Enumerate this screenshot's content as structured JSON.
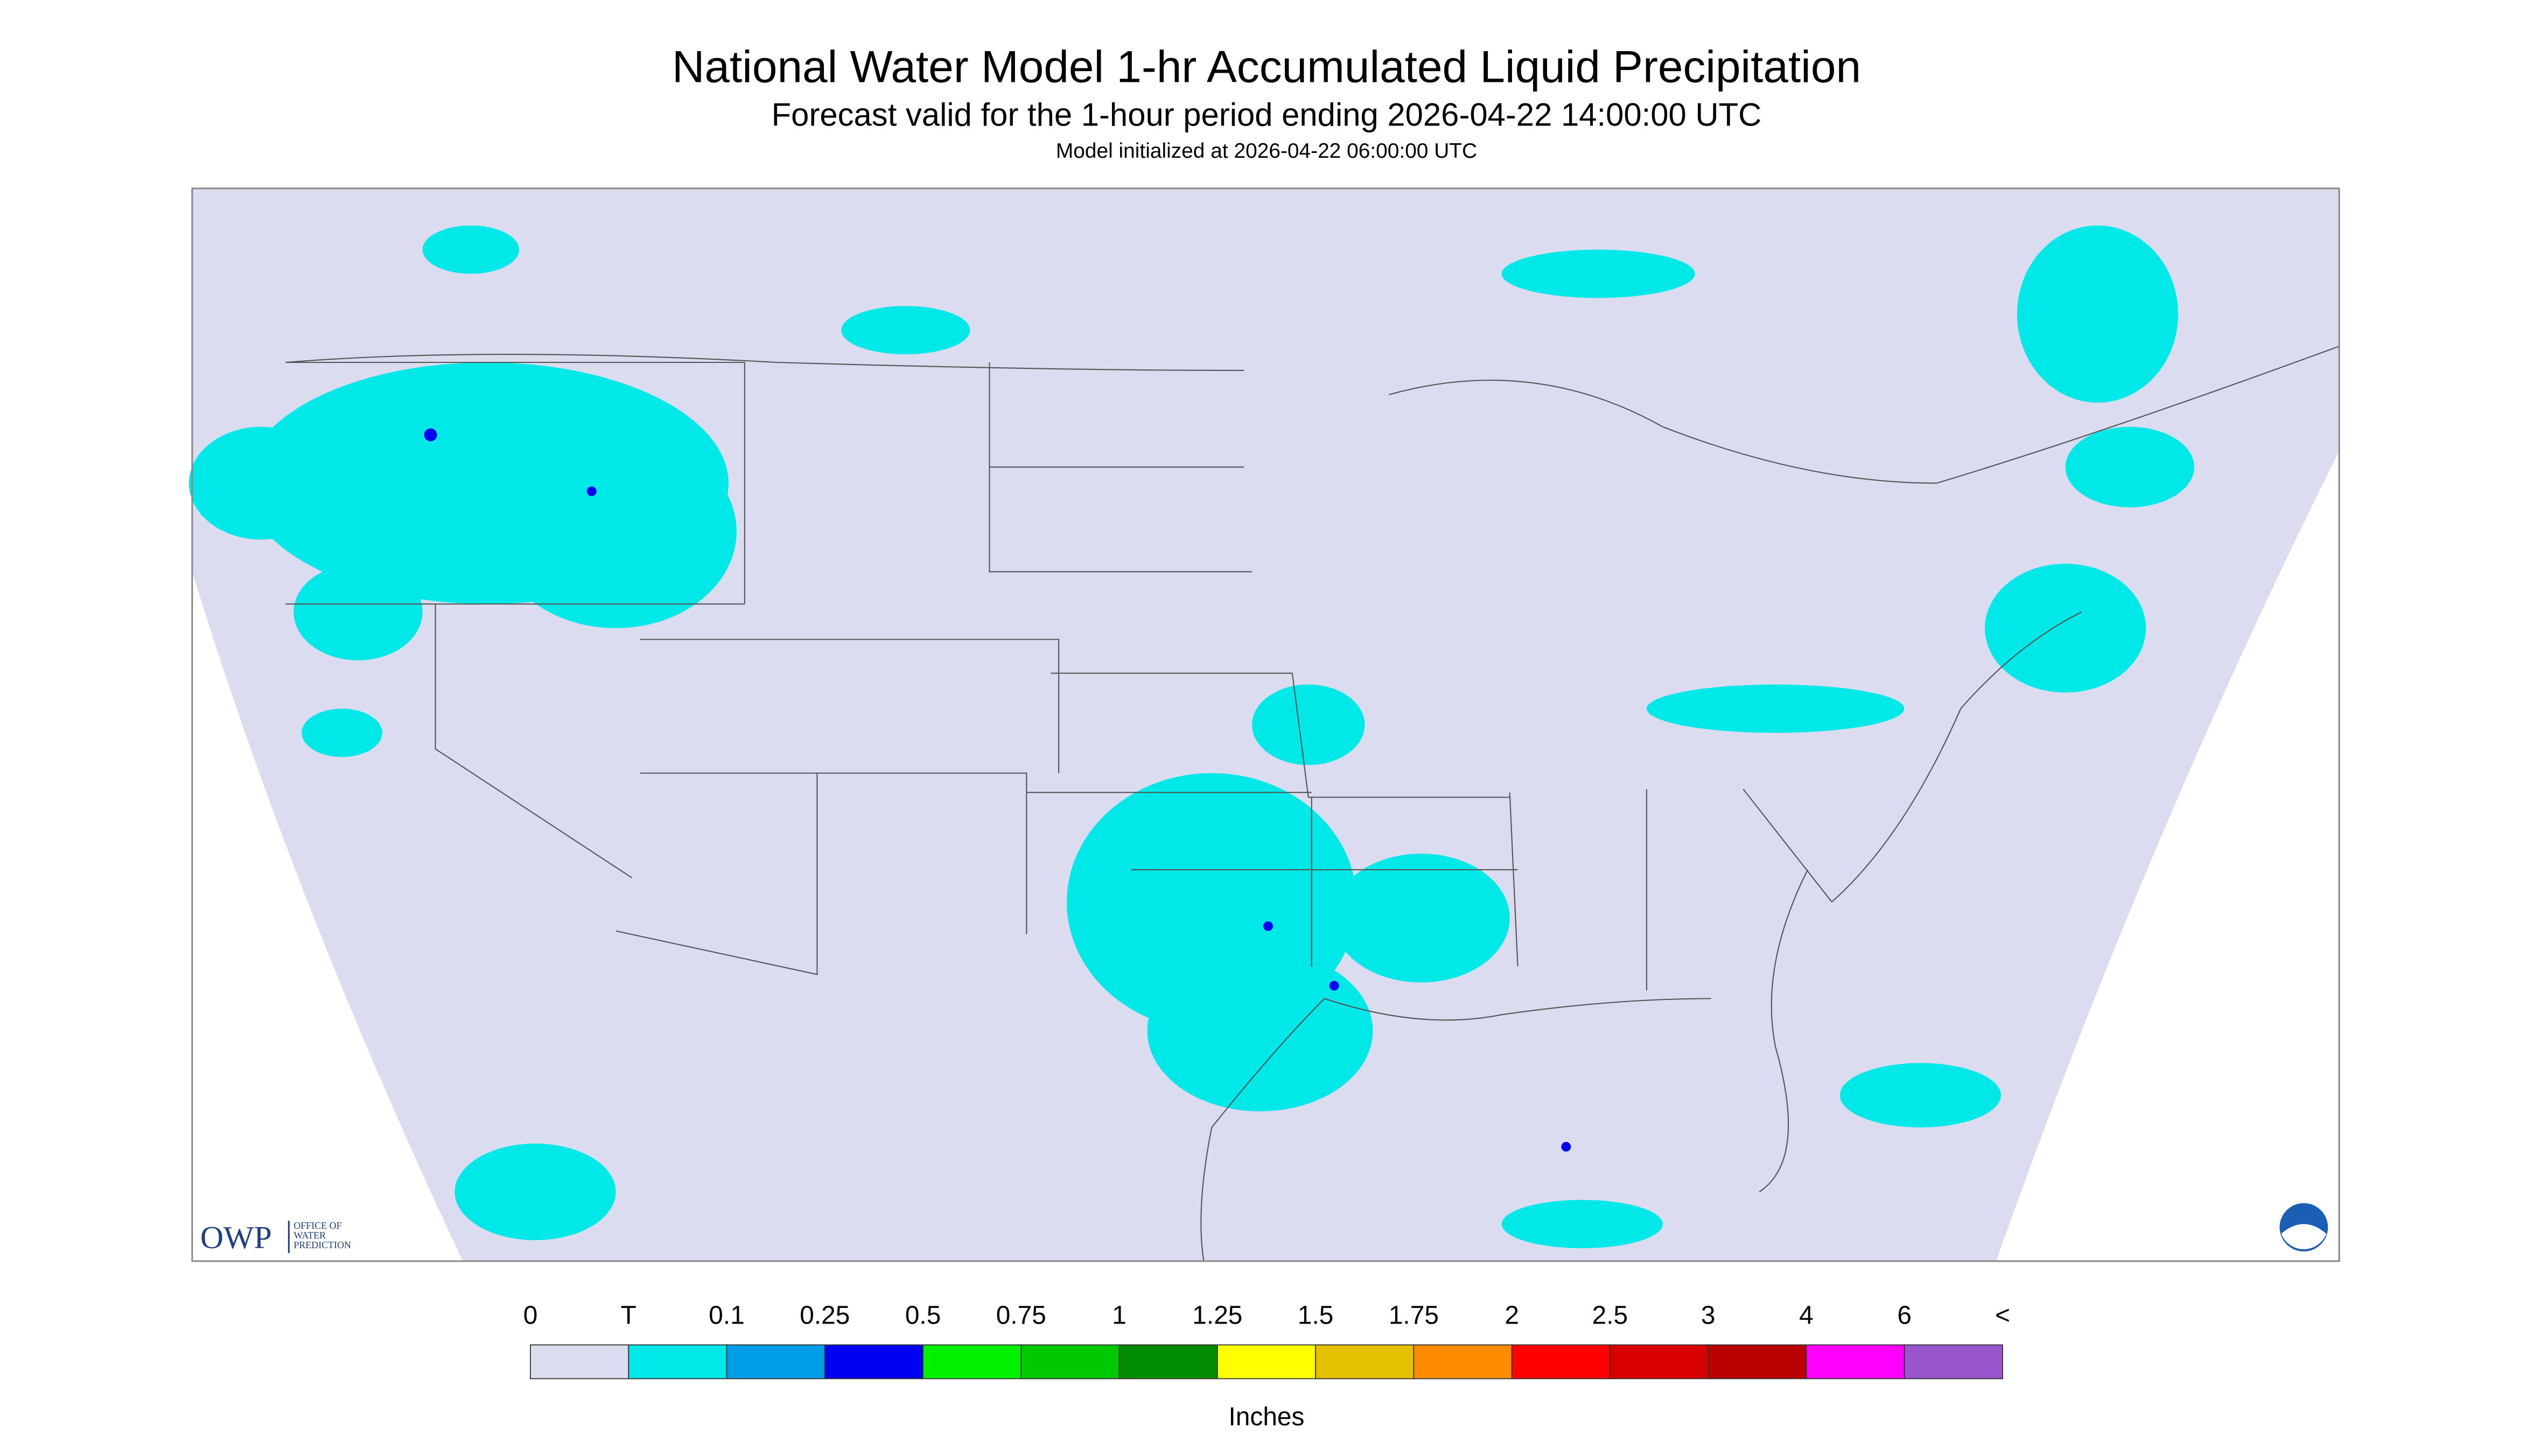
{
  "header": {
    "title": "National Water Model 1-hr Accumulated Liquid Precipitation",
    "subtitle": "Forecast valid for the 1-hour period ending 2026-04-22 14:00:00 UTC",
    "init": "Model initialized at 2026-04-22 06:00:00 UTC"
  },
  "legend": {
    "labels": [
      "0",
      "T",
      "0.1",
      "0.25",
      "0.5",
      "0.75",
      "1",
      "1.25",
      "1.5",
      "1.75",
      "2",
      "2.5",
      "3",
      "4",
      "6",
      "<"
    ],
    "colors": [
      "#dcdcf0",
      "#00e8e8",
      "#009ee8",
      "#0000f0",
      "#00f000",
      "#00c800",
      "#008c00",
      "#ffff00",
      "#e5c000",
      "#ff8c00",
      "#ff0000",
      "#d80000",
      "#bb0000",
      "#ff00ff",
      "#9955cc"
    ],
    "unit": "Inches"
  },
  "logo": {
    "name": "OWP",
    "lines": [
      "OFFICE OF",
      "WATER",
      "PREDICTION"
    ]
  }
}
